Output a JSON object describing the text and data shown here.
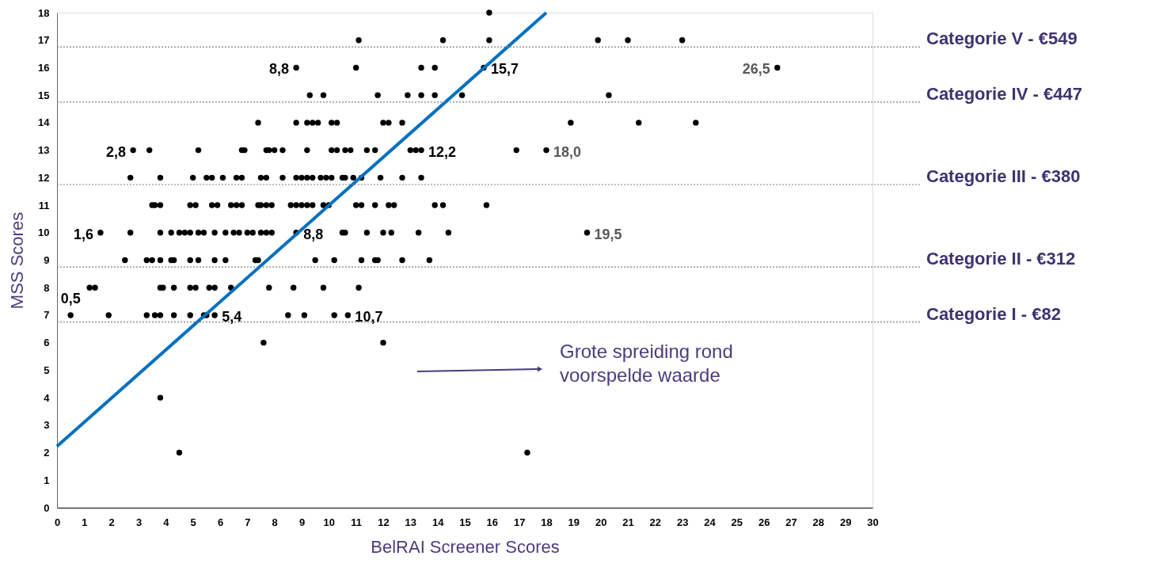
{
  "chart_data": {
    "type": "scatter",
    "xlabel": "BelRAI Screener Scores",
    "ylabel": "MSS Scores",
    "xlim": [
      0,
      30
    ],
    "xticks": [
      0,
      1,
      2,
      3,
      4,
      5,
      6,
      7,
      8,
      9,
      10,
      11,
      12,
      13,
      14,
      15,
      16,
      17,
      18,
      19,
      20,
      21,
      22,
      23,
      24,
      25,
      26,
      27,
      28,
      29,
      30
    ],
    "ylim": [
      0,
      18
    ],
    "yticks": [
      0,
      1,
      2,
      3,
      4,
      5,
      6,
      7,
      8,
      9,
      10,
      11,
      12,
      13,
      14,
      15,
      16,
      17,
      18
    ],
    "grid": false,
    "series": [
      {
        "color": "#000000",
        "x": [
          15.9,
          11.1,
          14.2,
          15.9,
          19.9,
          21.0,
          23.0,
          8.8,
          11.0,
          13.4,
          13.9,
          15.7,
          26.5,
          9.3,
          9.8,
          11.8,
          12.9,
          13.4,
          13.9,
          14.9,
          20.3,
          7.4,
          8.8,
          9.2,
          9.4,
          9.6,
          10.1,
          10.3,
          12.0,
          12.2,
          12.7,
          18.9,
          21.4,
          23.5,
          2.8,
          3.4,
          5.2,
          6.8,
          6.9,
          7.7,
          7.8,
          8.0,
          8.3,
          9.2,
          10.1,
          10.3,
          10.6,
          10.8,
          11.4,
          11.7,
          13.0,
          13.2,
          13.4,
          16.9,
          18.0,
          2.7,
          3.8,
          5.0,
          5.5,
          5.7,
          6.1,
          6.6,
          6.8,
          7.5,
          7.7,
          8.3,
          8.8,
          9.0,
          9.2,
          9.4,
          9.7,
          9.9,
          10.1,
          10.5,
          10.6,
          10.9,
          11.2,
          11.9,
          12.7,
          13.4,
          3.5,
          3.6,
          3.8,
          4.9,
          5.1,
          5.7,
          5.9,
          6.4,
          6.6,
          6.8,
          7.4,
          7.5,
          7.7,
          7.9,
          8.6,
          8.8,
          9.0,
          9.2,
          9.4,
          9.8,
          10.0,
          11.0,
          11.2,
          11.7,
          12.2,
          12.4,
          13.9,
          14.2,
          15.8,
          1.6,
          2.7,
          3.8,
          4.2,
          4.5,
          4.7,
          4.9,
          5.2,
          5.4,
          5.8,
          6.2,
          6.5,
          6.7,
          7.0,
          7.2,
          7.5,
          7.7,
          7.9,
          8.8,
          10.5,
          10.6,
          11.4,
          12.0,
          12.3,
          13.3,
          14.4,
          19.5,
          2.5,
          3.3,
          3.5,
          3.8,
          4.2,
          4.3,
          4.9,
          5.2,
          5.8,
          6.2,
          7.3,
          7.4,
          9.5,
          10.2,
          11.2,
          11.7,
          11.8,
          12.7,
          13.7,
          1.2,
          1.4,
          3.8,
          3.9,
          4.3,
          4.9,
          5.1,
          5.6,
          5.8,
          6.4,
          7.8,
          8.7,
          9.8,
          11.1,
          0.5,
          1.9,
          3.3,
          3.6,
          3.8,
          4.3,
          4.9,
          5.4,
          5.5,
          5.8,
          8.5,
          9.1,
          10.2,
          10.7,
          7.6,
          12.0,
          3.8,
          4.5,
          17.3
        ],
        "values": [
          18,
          17,
          17,
          17,
          17,
          17,
          17,
          16,
          16,
          16,
          16,
          16,
          16,
          15,
          15,
          15,
          15,
          15,
          15,
          15,
          15,
          14,
          14,
          14,
          14,
          14,
          14,
          14,
          14,
          14,
          14,
          14,
          14,
          14,
          13,
          13,
          13,
          13,
          13,
          13,
          13,
          13,
          13,
          13,
          13,
          13,
          13,
          13,
          13,
          13,
          13,
          13,
          13,
          13,
          13,
          12,
          12,
          12,
          12,
          12,
          12,
          12,
          12,
          12,
          12,
          12,
          12,
          12,
          12,
          12,
          12,
          12,
          12,
          12,
          12,
          12,
          12,
          12,
          12,
          12,
          11,
          11,
          11,
          11,
          11,
          11,
          11,
          11,
          11,
          11,
          11,
          11,
          11,
          11,
          11,
          11,
          11,
          11,
          11,
          11,
          11,
          11,
          11,
          11,
          11,
          11,
          11,
          11,
          11,
          10,
          10,
          10,
          10,
          10,
          10,
          10,
          10,
          10,
          10,
          10,
          10,
          10,
          10,
          10,
          10,
          10,
          10,
          10,
          10,
          10,
          10,
          10,
          10,
          10,
          10,
          10,
          9,
          9,
          9,
          9,
          9,
          9,
          9,
          9,
          9,
          9,
          9,
          9,
          9,
          9,
          9,
          9,
          9,
          9,
          9,
          8,
          8,
          8,
          8,
          8,
          8,
          8,
          8,
          8,
          8,
          8,
          8,
          8,
          8,
          7,
          7,
          7,
          7,
          7,
          7,
          7,
          7,
          7,
          7,
          7,
          7,
          7,
          7,
          6,
          6,
          4,
          2,
          2
        ]
      },
      {
        "type": "line",
        "color": "#0070c0",
        "x": [
          0,
          18
        ],
        "values": [
          2.23,
          18
        ]
      }
    ],
    "ref_lines": [
      {
        "axis": "y",
        "value": 16.75,
        "label": "Categorie V - €549",
        "line_style": "dotted",
        "color": "#808080"
      },
      {
        "axis": "y",
        "value": 14.75,
        "label": "Categorie IV - €447",
        "line_style": "dotted",
        "color": "#808080"
      },
      {
        "axis": "y",
        "value": 11.75,
        "label": "Categorie III - €380",
        "line_style": "dotted",
        "color": "#808080"
      },
      {
        "axis": "y",
        "value": 8.75,
        "label": "Categorie II - €312",
        "line_style": "dotted",
        "color": "#808080"
      },
      {
        "axis": "y",
        "value": 6.75,
        "label": "Categorie I - €82",
        "line_style": "dotted",
        "color": "#808080"
      }
    ],
    "annotations": [
      {
        "text": "0,5",
        "x": 0.5,
        "y": 7
      },
      {
        "text": "1,6",
        "x": 1.6,
        "y": 10
      },
      {
        "text": "2,8",
        "x": 2.8,
        "y": 13
      },
      {
        "text": "8,8",
        "x": 8.8,
        "y": 16
      },
      {
        "text": "5,4",
        "x": 5.8,
        "y": 7
      },
      {
        "text": "8,8",
        "x": 8.8,
        "y": 10
      },
      {
        "text": "10,7",
        "x": 10.7,
        "y": 7
      },
      {
        "text": "12,2",
        "x": 13.4,
        "y": 13
      },
      {
        "text": "15,7",
        "x": 15.7,
        "y": 16
      },
      {
        "text": "18,0",
        "x": 18.0,
        "y": 13
      },
      {
        "text": "19,5",
        "x": 19.5,
        "y": 10
      },
      {
        "text": "26,5",
        "x": 26.5,
        "y": 16
      },
      "Grote spreiding rond voorspelde waarde"
    ]
  }
}
